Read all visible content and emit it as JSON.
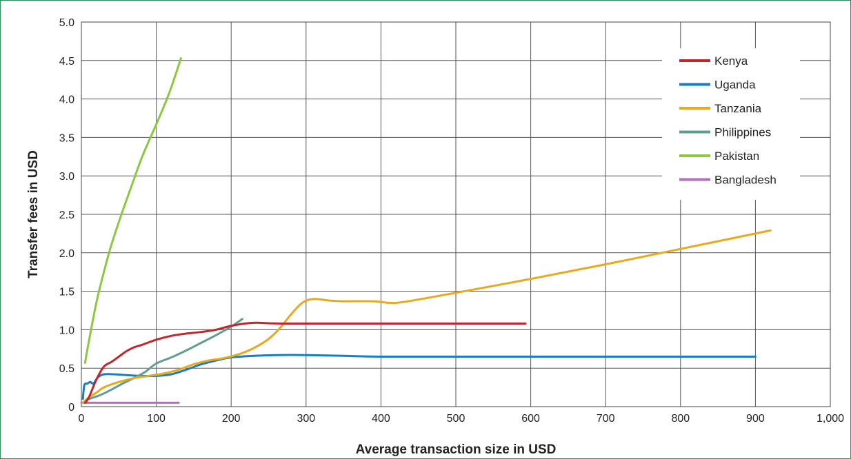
{
  "chart_data": {
    "type": "line",
    "title": "",
    "xlabel": "Average transaction size in USD",
    "ylabel": "Transfer fees in USD",
    "xlim": [
      0,
      1000
    ],
    "ylim": [
      0,
      5.0
    ],
    "x_ticks": [
      0,
      100,
      200,
      300,
      400,
      500,
      600,
      700,
      800,
      900,
      1000
    ],
    "x_tick_labels": [
      "0",
      "100",
      "200",
      "300",
      "400",
      "500",
      "600",
      "700",
      "800",
      "900",
      "1,000"
    ],
    "y_ticks": [
      0,
      0.5,
      1.0,
      1.5,
      2.0,
      2.5,
      3.0,
      3.5,
      4.0,
      4.5,
      5.0
    ],
    "y_tick_labels": [
      "0",
      "0.5",
      "1.0",
      "1.5",
      "2.0",
      "2.5",
      "3.0",
      "3.5",
      "4.0",
      "4.5",
      "5.0"
    ],
    "grid": true,
    "legend_position": "top-right",
    "series": [
      {
        "name": "Kenya",
        "color": "#c0272d",
        "points": [
          [
            5,
            0.05
          ],
          [
            10,
            0.12
          ],
          [
            20,
            0.35
          ],
          [
            30,
            0.52
          ],
          [
            40,
            0.58
          ],
          [
            50,
            0.65
          ],
          [
            60,
            0.72
          ],
          [
            70,
            0.77
          ],
          [
            80,
            0.8
          ],
          [
            100,
            0.87
          ],
          [
            120,
            0.92
          ],
          [
            140,
            0.95
          ],
          [
            160,
            0.97
          ],
          [
            180,
            1.0
          ],
          [
            200,
            1.05
          ],
          [
            230,
            1.09
          ],
          [
            270,
            1.08
          ],
          [
            400,
            1.08
          ],
          [
            500,
            1.08
          ],
          [
            593,
            1.08
          ]
        ]
      },
      {
        "name": "Uganda",
        "color": "#1a7cc5",
        "points": [
          [
            2,
            0.1
          ],
          [
            4,
            0.28
          ],
          [
            8,
            0.3
          ],
          [
            12,
            0.32
          ],
          [
            16,
            0.3
          ],
          [
            22,
            0.38
          ],
          [
            30,
            0.42
          ],
          [
            45,
            0.42
          ],
          [
            60,
            0.41
          ],
          [
            80,
            0.4
          ],
          [
            100,
            0.4
          ],
          [
            120,
            0.42
          ],
          [
            140,
            0.48
          ],
          [
            160,
            0.55
          ],
          [
            180,
            0.6
          ],
          [
            200,
            0.64
          ],
          [
            230,
            0.66
          ],
          [
            260,
            0.67
          ],
          [
            300,
            0.67
          ],
          [
            350,
            0.66
          ],
          [
            400,
            0.65
          ],
          [
            500,
            0.65
          ],
          [
            600,
            0.65
          ],
          [
            700,
            0.65
          ],
          [
            800,
            0.65
          ],
          [
            900,
            0.65
          ]
        ]
      },
      {
        "name": "Tanzania",
        "color": "#e8a820",
        "points": [
          [
            2,
            0.05
          ],
          [
            10,
            0.12
          ],
          [
            20,
            0.18
          ],
          [
            30,
            0.25
          ],
          [
            50,
            0.32
          ],
          [
            70,
            0.37
          ],
          [
            90,
            0.4
          ],
          [
            110,
            0.43
          ],
          [
            130,
            0.48
          ],
          [
            150,
            0.55
          ],
          [
            170,
            0.6
          ],
          [
            190,
            0.63
          ],
          [
            210,
            0.68
          ],
          [
            230,
            0.76
          ],
          [
            250,
            0.88
          ],
          [
            265,
            1.02
          ],
          [
            280,
            1.2
          ],
          [
            295,
            1.35
          ],
          [
            310,
            1.4
          ],
          [
            330,
            1.38
          ],
          [
            350,
            1.37
          ],
          [
            390,
            1.37
          ],
          [
            410,
            1.35
          ],
          [
            430,
            1.36
          ],
          [
            500,
            1.48
          ],
          [
            600,
            1.66
          ],
          [
            700,
            1.85
          ],
          [
            800,
            2.05
          ],
          [
            920,
            2.29
          ]
        ]
      },
      {
        "name": "Philippines",
        "color": "#5f9e8f",
        "points": [
          [
            10,
            0.1
          ],
          [
            25,
            0.15
          ],
          [
            40,
            0.22
          ],
          [
            55,
            0.3
          ],
          [
            70,
            0.37
          ],
          [
            85,
            0.45
          ],
          [
            100,
            0.56
          ],
          [
            120,
            0.64
          ],
          [
            140,
            0.73
          ],
          [
            160,
            0.83
          ],
          [
            180,
            0.93
          ],
          [
            200,
            1.04
          ],
          [
            215,
            1.14
          ]
        ]
      },
      {
        "name": "Pakistan",
        "color": "#8dc63f",
        "points": [
          [
            5,
            0.57
          ],
          [
            10,
            0.85
          ],
          [
            20,
            1.35
          ],
          [
            30,
            1.75
          ],
          [
            40,
            2.1
          ],
          [
            50,
            2.4
          ],
          [
            60,
            2.68
          ],
          [
            70,
            2.95
          ],
          [
            80,
            3.22
          ],
          [
            90,
            3.45
          ],
          [
            100,
            3.67
          ],
          [
            110,
            3.9
          ],
          [
            120,
            4.15
          ],
          [
            133,
            4.53
          ]
        ]
      },
      {
        "name": "Bangladesh",
        "color": "#b070b8",
        "points": [
          [
            0,
            0.05
          ],
          [
            40,
            0.05
          ],
          [
            80,
            0.05
          ],
          [
            130,
            0.05
          ]
        ]
      }
    ]
  }
}
